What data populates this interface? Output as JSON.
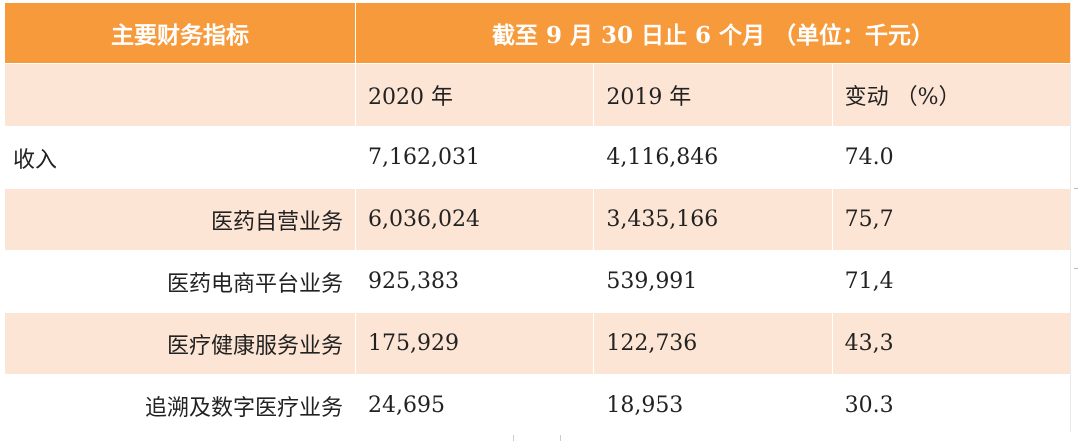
{
  "header": {
    "title_left": "主要财务指标",
    "title_right": "截至 9 月 30 日止 6 个月 （单位：千元）"
  },
  "columns": {
    "col1": "",
    "col2": "2020 年",
    "col3": "2019 年",
    "col4": "变动 （%）"
  },
  "rows": [
    {
      "label": "收入",
      "v2020": "7,162,031",
      "v2019": "4,116,846",
      "change": "74.0"
    },
    {
      "label": "医药自营业务",
      "v2020": "6,036,024",
      "v2019": "3,435,166",
      "change": "75,7"
    },
    {
      "label": "医药电商平台业务",
      "v2020": "925,383",
      "v2019": "539,991",
      "change": "71,4"
    },
    {
      "label": "医疗健康服务业务",
      "v2020": "175,929",
      "v2019": "122,736",
      "change": "43,3"
    },
    {
      "label": "追溯及数字医疗业务",
      "v2020": "24,695",
      "v2019": "18,953",
      "change": "30.3"
    }
  ]
}
